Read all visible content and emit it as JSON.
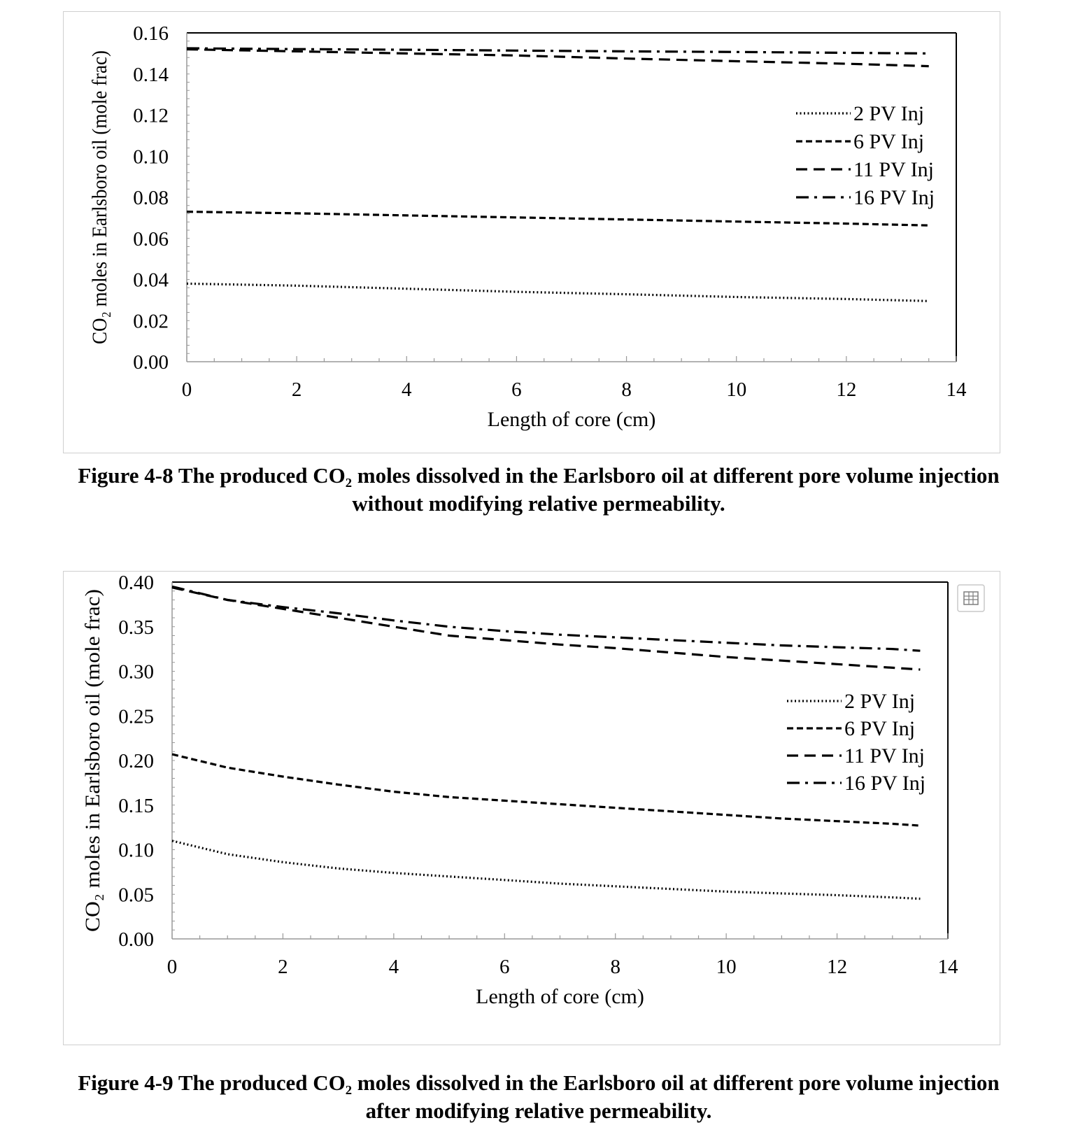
{
  "chart_data": [
    {
      "type": "line",
      "figure_label": "Figure 4-8",
      "caption": "The produced CO₂ moles dissolved in the Earlsboro oil at different pore volume injection without modifying relative permeability.",
      "xlabel": "Length of core (cm)",
      "ylabel": "CO₂ moles in Earlsboro oil (mole frac)",
      "xlim": [
        0,
        14
      ],
      "ylim": [
        0,
        0.16
      ],
      "xticks": [
        "0",
        "2",
        "4",
        "6",
        "8",
        "10",
        "12",
        "14"
      ],
      "yticks": [
        "0.00",
        "0.02",
        "0.04",
        "0.06",
        "0.08",
        "0.10",
        "0.12",
        "0.14",
        "0.16"
      ],
      "legend_position": "right",
      "series": [
        {
          "name": "2 PV Inj",
          "style": "dotted",
          "x": [
            0,
            2,
            4,
            6,
            8,
            10,
            12,
            13.5
          ],
          "values": [
            0.038,
            0.037,
            0.0355,
            0.034,
            0.0328,
            0.0315,
            0.0305,
            0.0295
          ]
        },
        {
          "name": "6 PV Inj",
          "style": "dashed",
          "x": [
            0,
            2,
            4,
            6,
            8,
            10,
            12,
            13.5
          ],
          "values": [
            0.073,
            0.0722,
            0.0712,
            0.0702,
            0.0692,
            0.0682,
            0.0672,
            0.0663
          ]
        },
        {
          "name": "11 PV Inj",
          "style": "long-dash",
          "x": [
            0,
            2,
            4,
            6,
            8,
            10,
            12,
            13.5
          ],
          "values": [
            0.152,
            0.151,
            0.15,
            0.149,
            0.1475,
            0.1462,
            0.145,
            0.1438
          ]
        },
        {
          "name": "16 PV Inj",
          "style": "dash-dot",
          "x": [
            0,
            2,
            4,
            6,
            8,
            10,
            12,
            13.5
          ],
          "values": [
            0.1525,
            0.1521,
            0.1518,
            0.1514,
            0.151,
            0.1507,
            0.1503,
            0.15
          ]
        }
      ]
    },
    {
      "type": "line",
      "figure_label": "Figure 4-9",
      "caption": "The produced CO₂ moles dissolved in the Earlsboro oil at different pore volume injection after modifying relative permeability.",
      "xlabel": "Length of core (cm)",
      "ylabel": "CO₂ moles in Earlsboro oil (mole frac)",
      "xlim": [
        0,
        14
      ],
      "ylim": [
        0,
        0.4
      ],
      "xticks": [
        "0",
        "2",
        "4",
        "6",
        "8",
        "10",
        "12",
        "14"
      ],
      "yticks": [
        "0.00",
        "0.05",
        "0.10",
        "0.15",
        "0.20",
        "0.25",
        "0.30",
        "0.35",
        "0.40"
      ],
      "legend_position": "right",
      "series": [
        {
          "name": "2 PV Inj",
          "style": "dotted",
          "x": [
            0,
            1,
            2,
            3,
            4,
            5,
            6,
            7,
            8,
            9,
            10,
            11,
            12,
            13,
            13.5
          ],
          "values": [
            0.11,
            0.095,
            0.086,
            0.079,
            0.074,
            0.07,
            0.066,
            0.062,
            0.059,
            0.056,
            0.053,
            0.051,
            0.049,
            0.0465,
            0.045
          ]
        },
        {
          "name": "6 PV Inj",
          "style": "dashed",
          "x": [
            0,
            1,
            2,
            3,
            4,
            5,
            6,
            7,
            8,
            9,
            10,
            11,
            12,
            13,
            13.5
          ],
          "values": [
            0.207,
            0.192,
            0.182,
            0.173,
            0.165,
            0.159,
            0.155,
            0.151,
            0.147,
            0.143,
            0.139,
            0.135,
            0.132,
            0.129,
            0.127
          ]
        },
        {
          "name": "11 PV Inj",
          "style": "long-dash",
          "x": [
            0,
            1,
            2,
            3,
            4,
            5,
            6,
            7,
            8,
            9,
            10,
            11,
            12,
            13,
            13.5
          ],
          "values": [
            0.394,
            0.38,
            0.37,
            0.36,
            0.35,
            0.34,
            0.335,
            0.33,
            0.326,
            0.321,
            0.316,
            0.312,
            0.308,
            0.304,
            0.302
          ]
        },
        {
          "name": "16 PV Inj",
          "style": "dash-dot",
          "x": [
            0,
            1,
            2,
            3,
            4,
            5,
            6,
            7,
            8,
            9,
            10,
            11,
            12,
            13,
            13.5
          ],
          "values": [
            0.395,
            0.38,
            0.372,
            0.365,
            0.357,
            0.35,
            0.345,
            0.341,
            0.338,
            0.335,
            0.332,
            0.329,
            0.327,
            0.325,
            0.323
          ]
        }
      ]
    }
  ]
}
